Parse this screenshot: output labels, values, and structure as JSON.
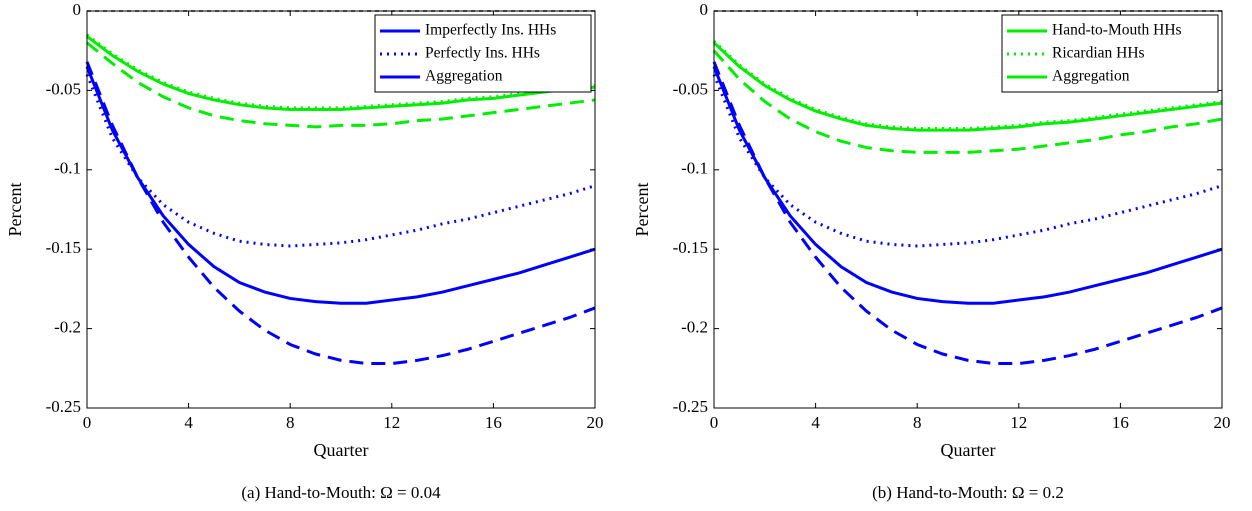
{
  "chart_data": [
    {
      "type": "line",
      "caption": "(a) Hand-to-Mouth: Ω = 0.04",
      "xlabel": "Quarter",
      "ylabel": "Percent",
      "x": [
        0,
        1,
        2,
        3,
        4,
        5,
        6,
        7,
        8,
        9,
        10,
        11,
        12,
        13,
        14,
        15,
        16,
        17,
        18,
        19,
        20
      ],
      "xlim": [
        0,
        20
      ],
      "xticks": [
        0,
        4,
        8,
        12,
        16,
        20
      ],
      "ylim": [
        -0.25,
        0
      ],
      "yticks": [
        -0.25,
        -0.2,
        -0.15,
        -0.1,
        -0.05,
        0
      ],
      "hline": 0,
      "legend": "upper right",
      "series": [
        {
          "name": "Imperfectly Ins. HHs",
          "color": "#0000ff",
          "dash": "dashed",
          "values": [
            -0.032,
            -0.072,
            -0.105,
            -0.133,
            -0.155,
            -0.174,
            -0.189,
            -0.201,
            -0.21,
            -0.216,
            -0.22,
            -0.222,
            -0.222,
            -0.22,
            -0.217,
            -0.213,
            -0.208,
            -0.203,
            -0.198,
            -0.193,
            -0.187
          ]
        },
        {
          "name": "Perfectly Ins. HHs",
          "color": "#0000ff",
          "dash": "dotted",
          "values": [
            -0.04,
            -0.08,
            -0.105,
            -0.122,
            -0.133,
            -0.14,
            -0.145,
            -0.147,
            -0.148,
            -0.147,
            -0.146,
            -0.144,
            -0.141,
            -0.138,
            -0.134,
            -0.131,
            -0.127,
            -0.123,
            -0.119,
            -0.115,
            -0.11
          ]
        },
        {
          "name": "Aggregation",
          "color": "#0000ff",
          "dash": "solid",
          "values": [
            -0.035,
            -0.075,
            -0.105,
            -0.129,
            -0.147,
            -0.161,
            -0.171,
            -0.177,
            -0.181,
            -0.183,
            -0.184,
            -0.184,
            -0.182,
            -0.18,
            -0.177,
            -0.173,
            -0.169,
            -0.165,
            -0.16,
            -0.155,
            -0.15
          ]
        },
        {
          "color": "#00ee00",
          "dash": "dashed",
          "values": [
            -0.02,
            -0.033,
            -0.045,
            -0.054,
            -0.061,
            -0.066,
            -0.069,
            -0.071,
            -0.072,
            -0.073,
            -0.072,
            -0.072,
            -0.071,
            -0.069,
            -0.068,
            -0.066,
            -0.064,
            -0.062,
            -0.06,
            -0.058,
            -0.056
          ]
        },
        {
          "color": "#00ee00",
          "dash": "dotted",
          "values": [
            -0.015,
            -0.027,
            -0.037,
            -0.045,
            -0.051,
            -0.055,
            -0.058,
            -0.06,
            -0.061,
            -0.061,
            -0.061,
            -0.06,
            -0.059,
            -0.058,
            -0.057,
            -0.055,
            -0.054,
            -0.052,
            -0.05,
            -0.048,
            -0.047
          ]
        },
        {
          "color": "#00ee00",
          "dash": "solid",
          "values": [
            -0.016,
            -0.028,
            -0.038,
            -0.046,
            -0.052,
            -0.056,
            -0.059,
            -0.061,
            -0.062,
            -0.062,
            -0.062,
            -0.061,
            -0.06,
            -0.059,
            -0.058,
            -0.056,
            -0.055,
            -0.053,
            -0.051,
            -0.049,
            -0.048
          ]
        }
      ]
    },
    {
      "type": "line",
      "caption": "(b) Hand-to-Mouth: Ω = 0.2",
      "xlabel": "Quarter",
      "ylabel": "Percent",
      "x": [
        0,
        1,
        2,
        3,
        4,
        5,
        6,
        7,
        8,
        9,
        10,
        11,
        12,
        13,
        14,
        15,
        16,
        17,
        18,
        19,
        20
      ],
      "xlim": [
        0,
        20
      ],
      "xticks": [
        0,
        4,
        8,
        12,
        16,
        20
      ],
      "ylim": [
        -0.25,
        0
      ],
      "yticks": [
        -0.25,
        -0.2,
        -0.15,
        -0.1,
        -0.05,
        0
      ],
      "hline": 0,
      "legend": "upper right",
      "series": [
        {
          "name": "Hand-to-Mouth HHs",
          "color": "#00ee00",
          "dash": "dashed",
          "values": [
            -0.025,
            -0.043,
            -0.057,
            -0.068,
            -0.076,
            -0.082,
            -0.086,
            -0.088,
            -0.089,
            -0.089,
            -0.089,
            -0.088,
            -0.087,
            -0.085,
            -0.083,
            -0.081,
            -0.078,
            -0.076,
            -0.073,
            -0.071,
            -0.068
          ]
        },
        {
          "name": "Ricardian HHs",
          "color": "#00ee00",
          "dash": "dotted",
          "values": [
            -0.019,
            -0.034,
            -0.046,
            -0.055,
            -0.062,
            -0.067,
            -0.071,
            -0.073,
            -0.074,
            -0.074,
            -0.074,
            -0.073,
            -0.072,
            -0.07,
            -0.069,
            -0.067,
            -0.065,
            -0.063,
            -0.061,
            -0.059,
            -0.057
          ]
        },
        {
          "name": "Aggregation",
          "color": "#00ee00",
          "dash": "solid",
          "values": [
            -0.02,
            -0.035,
            -0.047,
            -0.056,
            -0.063,
            -0.068,
            -0.072,
            -0.074,
            -0.075,
            -0.075,
            -0.075,
            -0.074,
            -0.073,
            -0.071,
            -0.07,
            -0.068,
            -0.066,
            -0.064,
            -0.062,
            -0.06,
            -0.058
          ]
        },
        {
          "color": "#0000ff",
          "dash": "dashed",
          "values": [
            -0.032,
            -0.072,
            -0.105,
            -0.133,
            -0.155,
            -0.174,
            -0.189,
            -0.201,
            -0.21,
            -0.216,
            -0.22,
            -0.222,
            -0.222,
            -0.22,
            -0.217,
            -0.213,
            -0.208,
            -0.203,
            -0.198,
            -0.193,
            -0.187
          ]
        },
        {
          "color": "#0000ff",
          "dash": "dotted",
          "values": [
            -0.04,
            -0.08,
            -0.105,
            -0.122,
            -0.133,
            -0.14,
            -0.145,
            -0.147,
            -0.148,
            -0.147,
            -0.146,
            -0.144,
            -0.141,
            -0.138,
            -0.134,
            -0.131,
            -0.127,
            -0.123,
            -0.119,
            -0.115,
            -0.11
          ]
        },
        {
          "color": "#0000ff",
          "dash": "solid",
          "values": [
            -0.035,
            -0.075,
            -0.105,
            -0.129,
            -0.147,
            -0.161,
            -0.171,
            -0.177,
            -0.181,
            -0.183,
            -0.184,
            -0.184,
            -0.182,
            -0.18,
            -0.177,
            -0.173,
            -0.169,
            -0.165,
            -0.16,
            -0.155,
            -0.15
          ]
        }
      ]
    }
  ]
}
